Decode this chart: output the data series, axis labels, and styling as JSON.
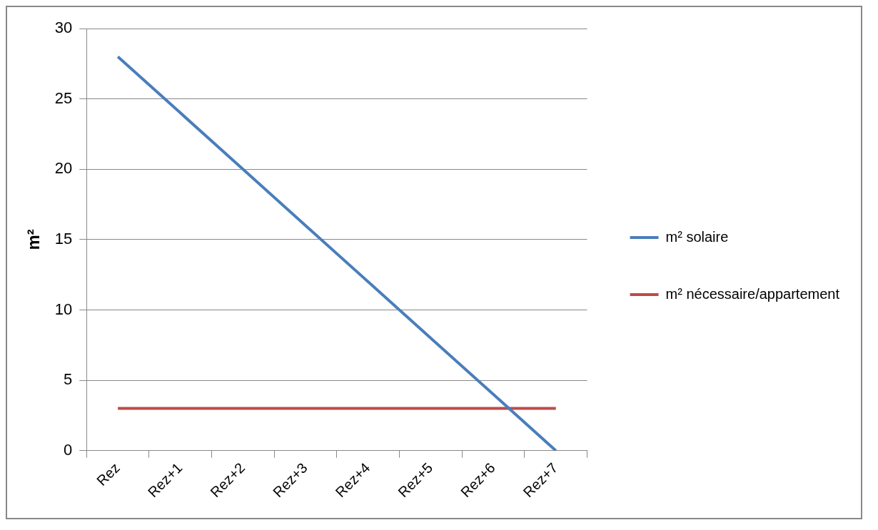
{
  "chart_data": {
    "type": "line",
    "ylabel": "m²",
    "categories": [
      "Rez",
      "Rez+1",
      "Rez+2",
      "Rez+3",
      "Rez+4",
      "Rez+5",
      "Rez+6",
      "Rez+7"
    ],
    "series": [
      {
        "name": "m² solaire",
        "color": "#4a7ebb",
        "values": [
          28,
          24,
          20,
          16,
          12,
          8,
          4,
          0
        ]
      },
      {
        "name": "m² nécessaire/appartement",
        "color": "#be4b48",
        "values": [
          3,
          3,
          3,
          3,
          3,
          3,
          3,
          3
        ]
      }
    ],
    "ylim": [
      0,
      30
    ],
    "yticks": [
      0,
      5,
      10,
      15,
      20,
      25,
      30
    ],
    "grid": "y",
    "legend": "right",
    "marker": "none",
    "line_style": "solid"
  }
}
